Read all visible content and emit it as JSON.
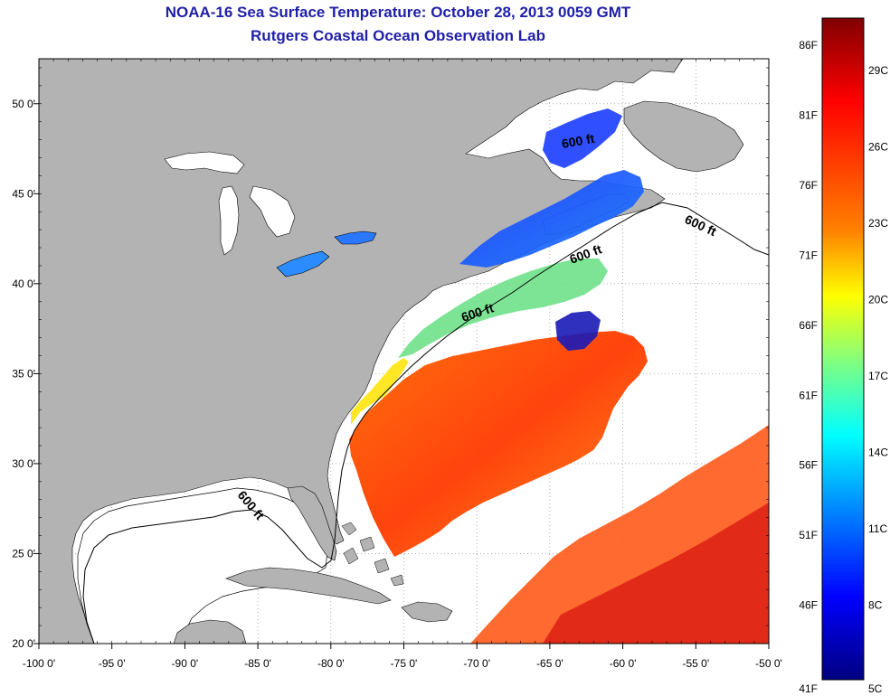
{
  "title": {
    "line1": "NOAA-16 Sea Surface Temperature:  October 28, 2013 0059 GMT",
    "line2": "Rutgers Coastal Ocean Observation Lab"
  },
  "map": {
    "lon_range": [
      -100,
      -50
    ],
    "lat_range": [
      20,
      52.5
    ],
    "lon_ticks": [
      "-100 0'",
      "-95 0'",
      "-90 0'",
      "-85 0'",
      "-80 0'",
      "-75 0'",
      "-70 0'",
      "-65 0'",
      "-60 0'",
      "-55 0'",
      "-50 0'"
    ],
    "lat_ticks": [
      "20 0'",
      "25 0'",
      "30 0'",
      "35 0'",
      "40 0'",
      "45 0'",
      "50 0'"
    ],
    "contour_label": "600 ft",
    "colors": {
      "land": "#b3b3b3",
      "water": "#ffffff",
      "title": "#1f1fa8"
    }
  },
  "colorbar": {
    "fahrenheit": [
      "86F",
      "81F",
      "76F",
      "71F",
      "66F",
      "61F",
      "56F",
      "51F",
      "46F",
      "41F"
    ],
    "celsius": [
      "29C",
      "26C",
      "23C",
      "20C",
      "17C",
      "14C",
      "11C",
      "8C",
      "5C"
    ],
    "gradient": [
      "#800000",
      "#ff0000",
      "#ff8000",
      "#ffff00",
      "#80ff80",
      "#00ffff",
      "#0080ff",
      "#0000ff",
      "#000080"
    ]
  }
}
